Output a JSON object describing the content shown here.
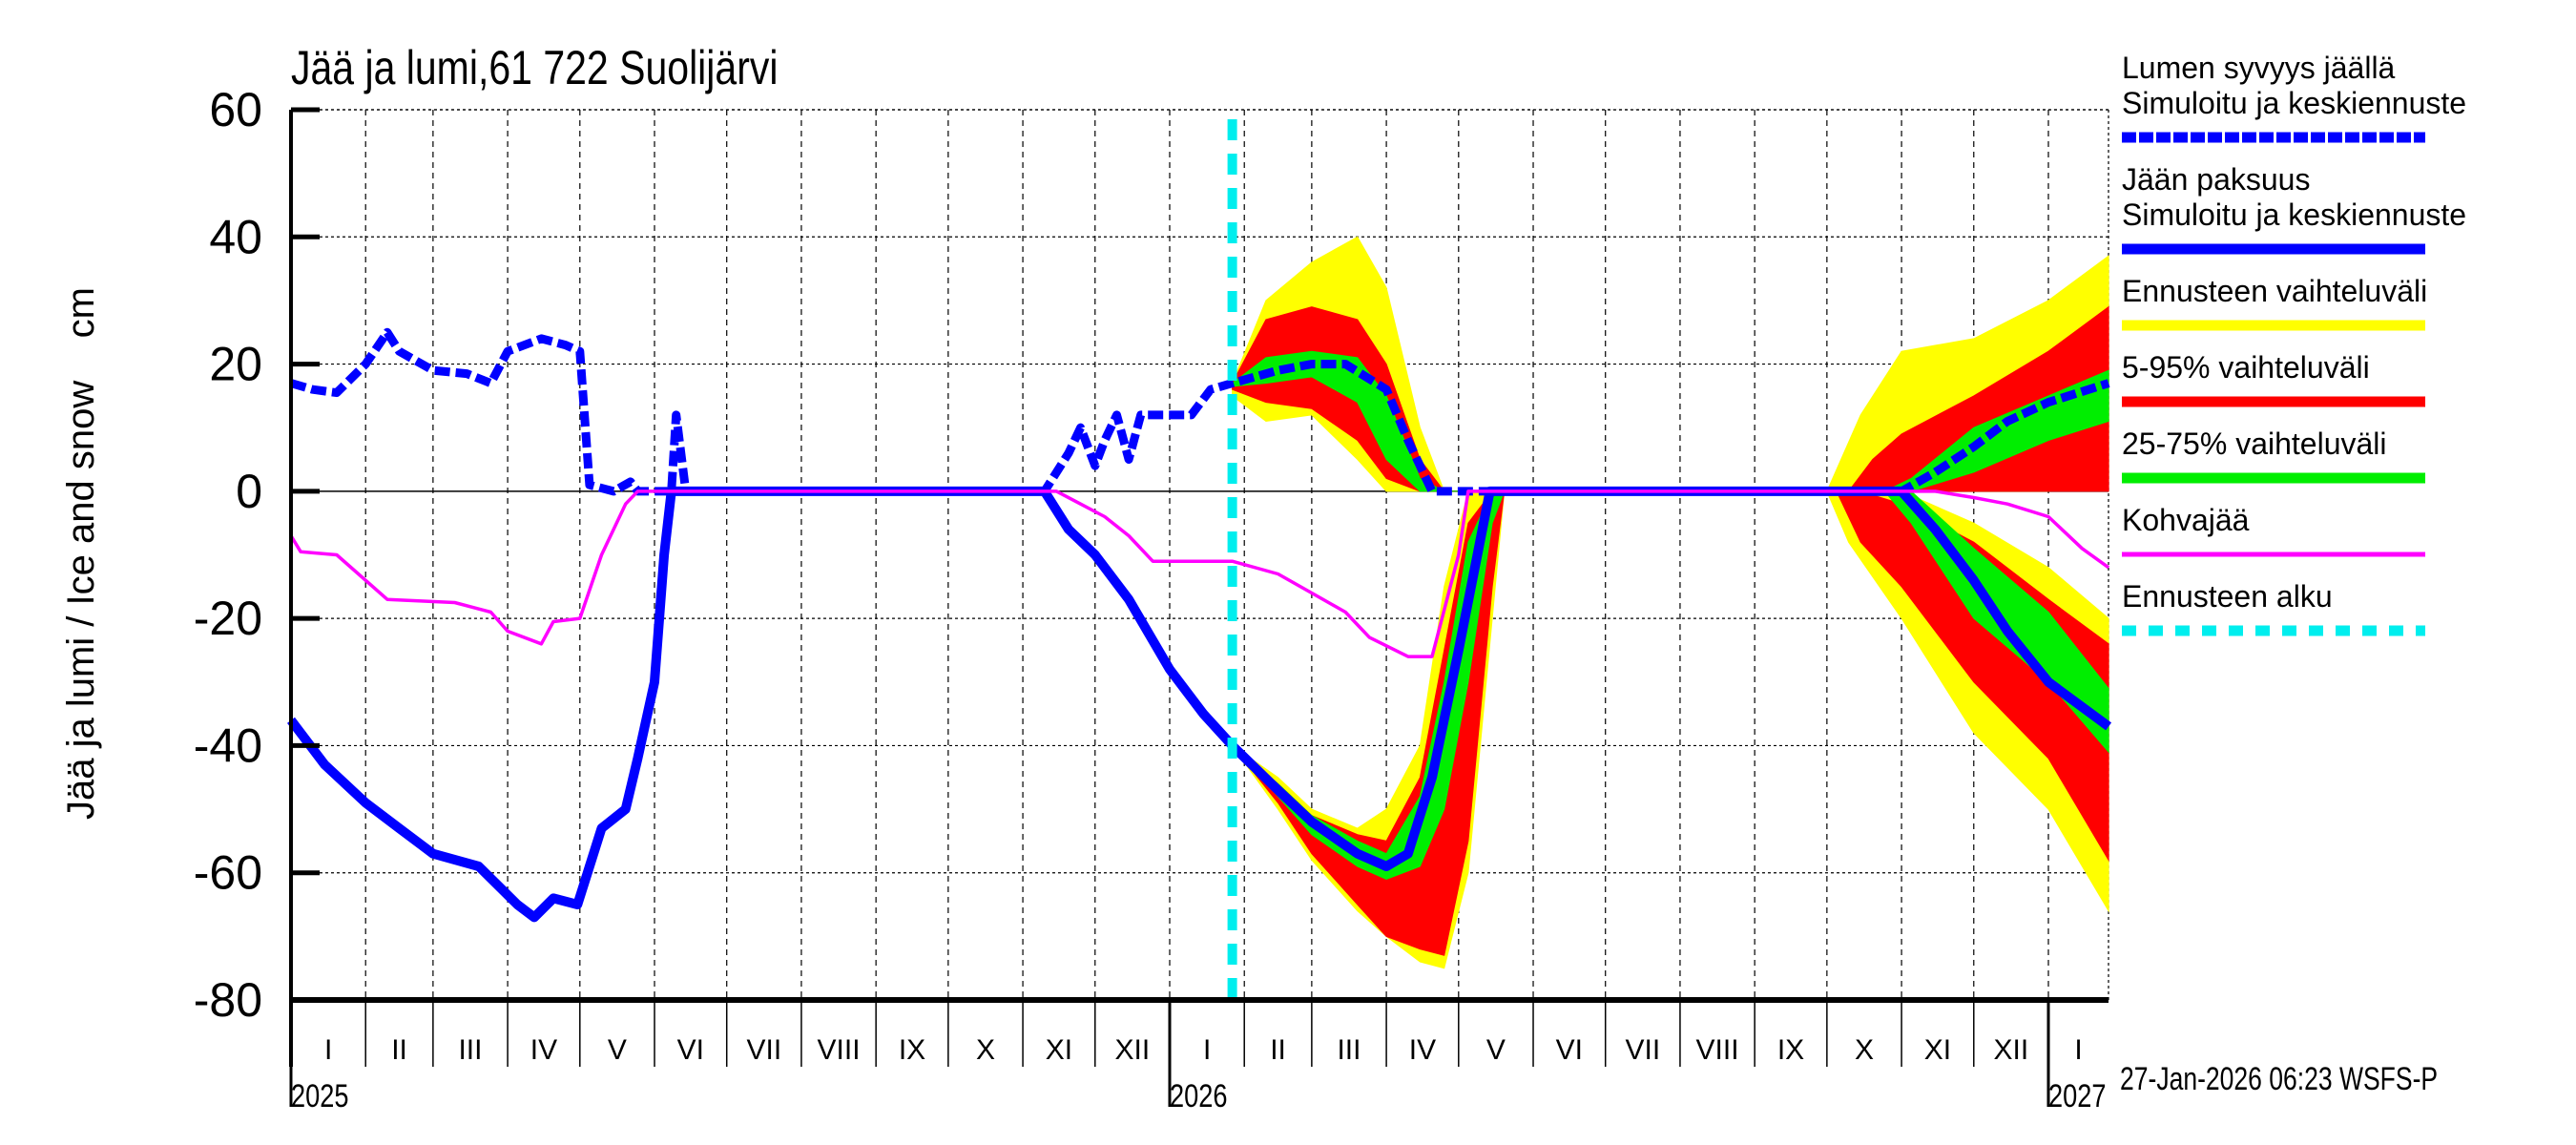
{
  "chart_data": {
    "type": "area",
    "title": "Jää ja lumi,61 722 Suolijärvi",
    "ylabel": "Jää ja lumi / Ice and snow    cm",
    "ylim": [
      -80,
      60
    ],
    "yticks": [
      60,
      40,
      20,
      0,
      -20,
      -40,
      -60,
      -80
    ],
    "xlim": [
      "2025-01-01",
      "2027-01-26"
    ],
    "grid": true,
    "legend_placement": "right",
    "month_labels": [
      "I",
      "II",
      "III",
      "IV",
      "V",
      "VI",
      "VII",
      "VIII",
      "IX",
      "X",
      "XI",
      "XII"
    ],
    "year_labels": [
      "2025",
      "2026",
      "2027"
    ],
    "timestamp": "27-Jan-2026 06:23 WSFS-P",
    "forecast_start": "2026-01-27",
    "colors": {
      "snow": "#0000ff",
      "ice": "#0000ff",
      "range": "#ffff00",
      "p5_95": "#ff0000",
      "p25_75": "#00ee00",
      "slush": "#ff00ff",
      "forecast_start": "#00eeee"
    },
    "legend": [
      {
        "label1": "Lumen syvyys jäällä",
        "label2": "Simuloitu ja keskiennuste",
        "color": "#0000ff",
        "style": "dashed-thick"
      },
      {
        "label1": "Jään paksuus",
        "label2": "Simuloitu ja keskiennuste",
        "color": "#0000ff",
        "style": "solid-thick"
      },
      {
        "label1": "Ennusteen vaihteluväli",
        "color": "#ffff00",
        "style": "solid-thick"
      },
      {
        "label1": "5-95% vaihteluväli",
        "color": "#ff0000",
        "style": "solid-thick"
      },
      {
        "label1": "25-75% vaihteluväli",
        "color": "#00ee00",
        "style": "solid-thick"
      },
      {
        "label1": "Kohvajää",
        "color": "#ff00ff",
        "style": "solid-thin"
      },
      {
        "label1": "Ennusteen alku",
        "color": "#00eeee",
        "style": "dashed-thick"
      }
    ],
    "series": {
      "snow_depth": [
        [
          "2025-01-01",
          17
        ],
        [
          "2025-01-10",
          16
        ],
        [
          "2025-01-20",
          15.5
        ],
        [
          "2025-02-01",
          20
        ],
        [
          "2025-02-10",
          25
        ],
        [
          "2025-02-15",
          22
        ],
        [
          "2025-03-01",
          19
        ],
        [
          "2025-03-15",
          18.5
        ],
        [
          "2025-03-25",
          17
        ],
        [
          "2025-04-01",
          22
        ],
        [
          "2025-04-15",
          24
        ],
        [
          "2025-04-25",
          23
        ],
        [
          "2025-05-01",
          22
        ],
        [
          "2025-05-05",
          1
        ],
        [
          "2025-05-15",
          0
        ],
        [
          "2025-05-22",
          1.5
        ],
        [
          "2025-05-25",
          0
        ],
        [
          "2025-06-08",
          0
        ],
        [
          "2025-06-10",
          12
        ],
        [
          "2025-06-14",
          0
        ],
        [
          "2025-11-10",
          0
        ],
        [
          "2025-11-20",
          6
        ],
        [
          "2025-11-25",
          10
        ],
        [
          "2025-12-01",
          4
        ],
        [
          "2025-12-05",
          8
        ],
        [
          "2025-12-10",
          12
        ],
        [
          "2025-12-15",
          5
        ],
        [
          "2025-12-20",
          12
        ],
        [
          "2026-01-10",
          12
        ],
        [
          "2026-01-18",
          16
        ],
        [
          "2026-01-27",
          17
        ],
        [
          "2026-02-15",
          19
        ],
        [
          "2026-03-01",
          20
        ],
        [
          "2026-03-15",
          20
        ],
        [
          "2026-04-01",
          16
        ],
        [
          "2026-04-10",
          8
        ],
        [
          "2026-04-20",
          0
        ],
        [
          "2026-11-01",
          0
        ],
        [
          "2026-11-15",
          3
        ],
        [
          "2026-12-01",
          7
        ],
        [
          "2026-12-15",
          11
        ],
        [
          "2027-01-01",
          14
        ],
        [
          "2027-01-26",
          17
        ]
      ],
      "ice_thickness": [
        [
          "2025-01-01",
          -36
        ],
        [
          "2025-01-15",
          -43
        ],
        [
          "2025-02-01",
          -49
        ],
        [
          "2025-02-15",
          -53
        ],
        [
          "2025-03-01",
          -57
        ],
        [
          "2025-03-20",
          -59
        ],
        [
          "2025-04-05",
          -65
        ],
        [
          "2025-04-12",
          -67
        ],
        [
          "2025-04-20",
          -64
        ],
        [
          "2025-04-30",
          -65
        ],
        [
          "2025-05-10",
          -53
        ],
        [
          "2025-05-20",
          -50
        ],
        [
          "2025-05-25",
          -42
        ],
        [
          "2025-06-01",
          -30
        ],
        [
          "2025-06-05",
          -10
        ],
        [
          "2025-06-08",
          0
        ],
        [
          "2025-11-10",
          0
        ],
        [
          "2025-11-20",
          -6
        ],
        [
          "2025-12-01",
          -10
        ],
        [
          "2025-12-15",
          -17
        ],
        [
          "2026-01-01",
          -28
        ],
        [
          "2026-01-15",
          -35
        ],
        [
          "2026-01-27",
          -40
        ],
        [
          "2026-02-15",
          -47
        ],
        [
          "2026-03-01",
          -52
        ],
        [
          "2026-03-20",
          -57
        ],
        [
          "2026-04-01",
          -59
        ],
        [
          "2026-04-10",
          -57
        ],
        [
          "2026-04-20",
          -45
        ],
        [
          "2026-05-01",
          -25
        ],
        [
          "2026-05-14",
          0
        ],
        [
          "2026-11-01",
          0
        ],
        [
          "2026-11-15",
          -6
        ],
        [
          "2026-12-01",
          -14
        ],
        [
          "2026-12-15",
          -22
        ],
        [
          "2027-01-01",
          -30
        ],
        [
          "2027-01-26",
          -37
        ]
      ],
      "slush_ice": [
        [
          "2025-01-01",
          -7
        ],
        [
          "2025-01-05",
          -9.5
        ],
        [
          "2025-01-20",
          -10
        ],
        [
          "2025-02-10",
          -17
        ],
        [
          "2025-03-10",
          -17.5
        ],
        [
          "2025-03-25",
          -19
        ],
        [
          "2025-04-01",
          -22
        ],
        [
          "2025-04-15",
          -24
        ],
        [
          "2025-04-20",
          -20.5
        ],
        [
          "2025-05-01",
          -20
        ],
        [
          "2025-05-10",
          -10
        ],
        [
          "2025-05-20",
          -2
        ],
        [
          "2025-05-25",
          0
        ],
        [
          "2025-11-15",
          0
        ],
        [
          "2025-11-25",
          -2
        ],
        [
          "2025-12-05",
          -4
        ],
        [
          "2025-12-15",
          -7
        ],
        [
          "2025-12-25",
          -11
        ],
        [
          "2026-01-27",
          -11
        ],
        [
          "2026-02-15",
          -13
        ],
        [
          "2026-03-01",
          -16
        ],
        [
          "2026-03-15",
          -19
        ],
        [
          "2026-03-25",
          -23
        ],
        [
          "2026-04-10",
          -26
        ],
        [
          "2026-04-20",
          -26
        ],
        [
          "2026-05-01",
          -10
        ],
        [
          "2026-05-05",
          0
        ],
        [
          "2026-11-15",
          0
        ],
        [
          "2026-12-01",
          -1
        ],
        [
          "2026-12-15",
          -2
        ],
        [
          "2027-01-01",
          -4
        ],
        [
          "2027-01-15",
          -9
        ],
        [
          "2027-01-26",
          -12
        ]
      ]
    },
    "bands": {
      "snow_range": [
        [
          "2026-01-27",
          15,
          17
        ],
        [
          "2026-02-10",
          11,
          30
        ],
        [
          "2026-03-01",
          12,
          36
        ],
        [
          "2026-03-20",
          5,
          40
        ],
        [
          "2026-04-01",
          0,
          32
        ],
        [
          "2026-04-15",
          0,
          10
        ],
        [
          "2026-04-25",
          0,
          0
        ],
        [
          "2026-10-01",
          0,
          0
        ],
        [
          "2026-10-15",
          0,
          12
        ],
        [
          "2026-11-01",
          0,
          22
        ],
        [
          "2026-12-01",
          0,
          24
        ],
        [
          "2027-01-01",
          0,
          30
        ],
        [
          "2027-01-26",
          2,
          37
        ]
      ],
      "snow_p5_95": [
        [
          "2026-01-27",
          16,
          17
        ],
        [
          "2026-02-10",
          14,
          27
        ],
        [
          "2026-03-01",
          13,
          29
        ],
        [
          "2026-03-20",
          8,
          27
        ],
        [
          "2026-04-01",
          2,
          20
        ],
        [
          "2026-04-15",
          0,
          5
        ],
        [
          "2026-04-25",
          0,
          0
        ],
        [
          "2026-10-10",
          0,
          0
        ],
        [
          "2026-10-20",
          0,
          5
        ],
        [
          "2026-11-01",
          0,
          9
        ],
        [
          "2026-12-01",
          0,
          15
        ],
        [
          "2027-01-01",
          0,
          22
        ],
        [
          "2027-01-26",
          0,
          29
        ]
      ],
      "snow_p25_75": [
        [
          "2026-01-27",
          16.5,
          17
        ],
        [
          "2026-02-10",
          17,
          21
        ],
        [
          "2026-03-01",
          18,
          22
        ],
        [
          "2026-03-20",
          14,
          21
        ],
        [
          "2026-04-01",
          5,
          15
        ],
        [
          "2026-04-15",
          0,
          2
        ],
        [
          "2026-04-25",
          0,
          0
        ],
        [
          "2026-10-25",
          0,
          0
        ],
        [
          "2026-11-05",
          0,
          2
        ],
        [
          "2026-12-01",
          3,
          10
        ],
        [
          "2027-01-01",
          8,
          15
        ],
        [
          "2027-01-26",
          11,
          19
        ]
      ],
      "ice_range": [
        [
          "2026-01-27",
          -40,
          -40
        ],
        [
          "2026-02-15",
          -50,
          -45
        ],
        [
          "2026-03-01",
          -58,
          -50
        ],
        [
          "2026-03-20",
          -66,
          -53
        ],
        [
          "2026-04-01",
          -70,
          -50
        ],
        [
          "2026-04-15",
          -74,
          -40
        ],
        [
          "2026-04-25",
          -75,
          -15
        ],
        [
          "2026-05-05",
          -60,
          0
        ],
        [
          "2026-05-15",
          -20,
          0
        ],
        [
          "2026-05-20",
          0,
          0
        ],
        [
          "2026-10-01",
          0,
          0
        ],
        [
          "2026-10-10",
          -8,
          0
        ],
        [
          "2026-11-01",
          -20,
          0
        ],
        [
          "2026-12-01",
          -38,
          -5
        ],
        [
          "2027-01-01",
          -50,
          -12
        ],
        [
          "2027-01-26",
          -66,
          -20
        ]
      ],
      "ice_p5_95": [
        [
          "2026-01-27",
          -40,
          -40
        ],
        [
          "2026-02-15",
          -49,
          -46
        ],
        [
          "2026-03-01",
          -57,
          -51
        ],
        [
          "2026-03-20",
          -65,
          -54
        ],
        [
          "2026-04-01",
          -70,
          -55
        ],
        [
          "2026-04-15",
          -72,
          -45
        ],
        [
          "2026-04-25",
          -73,
          -25
        ],
        [
          "2026-05-05",
          -55,
          -5
        ],
        [
          "2026-05-15",
          -15,
          0
        ],
        [
          "2026-05-20",
          0,
          0
        ],
        [
          "2026-10-05",
          0,
          0
        ],
        [
          "2026-10-15",
          -8,
          0
        ],
        [
          "2026-11-01",
          -15,
          -2
        ],
        [
          "2026-12-01",
          -30,
          -8
        ],
        [
          "2027-01-01",
          -42,
          -17
        ],
        [
          "2027-01-26",
          -58,
          -24
        ]
      ],
      "ice_p25_75": [
        [
          "2026-01-27",
          -40,
          -40
        ],
        [
          "2026-02-15",
          -48,
          -46
        ],
        [
          "2026-03-01",
          -54,
          -51
        ],
        [
          "2026-03-20",
          -59,
          -55
        ],
        [
          "2026-04-01",
          -61,
          -57
        ],
        [
          "2026-04-15",
          -59,
          -48
        ],
        [
          "2026-04-25",
          -50,
          -30
        ],
        [
          "2026-05-05",
          -30,
          -8
        ],
        [
          "2026-05-15",
          -5,
          0
        ],
        [
          "2026-05-20",
          0,
          0
        ],
        [
          "2026-10-25",
          0,
          0
        ],
        [
          "2026-11-05",
          -5,
          0
        ],
        [
          "2026-12-01",
          -20,
          -9
        ],
        [
          "2027-01-01",
          -30,
          -19
        ],
        [
          "2027-01-26",
          -41,
          -31
        ]
      ]
    }
  }
}
